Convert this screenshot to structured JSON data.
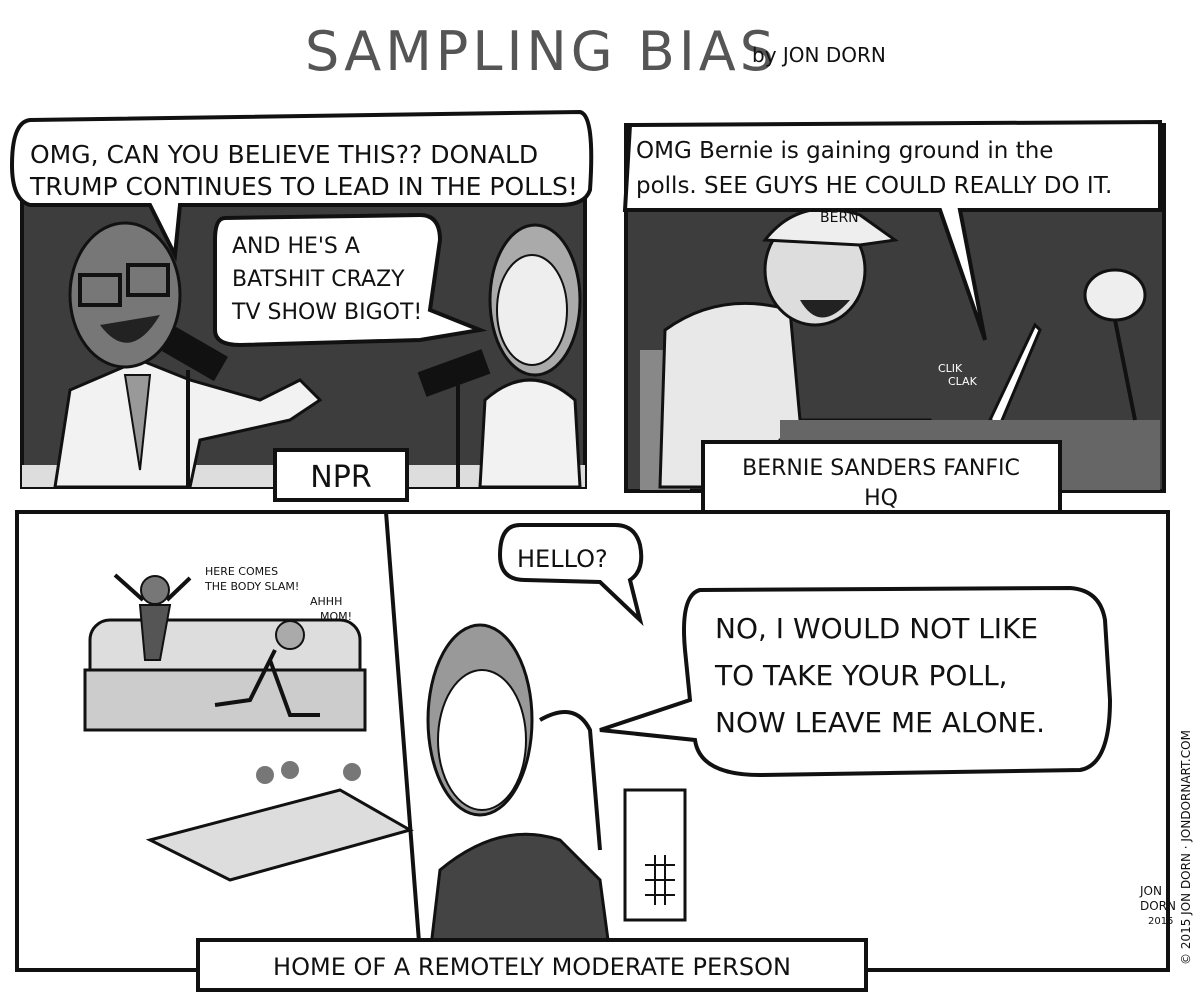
{
  "header": {
    "title": "SAMPLING BIAS",
    "byline": "by JON DORN"
  },
  "panels": [
    {
      "bubbles": [
        {
          "lines": [
            "OMG, CAN YOU BELIEVE THIS?? DONALD",
            "TRUMP CONTINUES TO LEAD IN THE POLLS!"
          ]
        },
        {
          "lines": [
            "AND HE'S A",
            "BATSHIT CRAZY",
            "TV SHOW BIGOT!"
          ]
        }
      ],
      "caption": "NPR"
    },
    {
      "bubbles": [
        {
          "lines": [
            "OMG Bernie is gaining ground in the",
            "polls. SEE GUYS HE COULD REALLY DO IT."
          ]
        }
      ],
      "cap_text": "BERN",
      "sound": [
        "CLIK",
        "CLAK"
      ],
      "caption": [
        "BERNIE SANDERS FANFIC",
        "HQ"
      ]
    },
    {
      "shouts": [
        [
          "HERE COMES",
          "THE BODY SLAM!"
        ],
        [
          "AHHH",
          "MOM!"
        ]
      ],
      "bubbles": [
        {
          "lines": [
            "HELLO?"
          ]
        },
        {
          "lines": [
            "NO, I WOULD NOT LIKE",
            "TO TAKE YOUR POLL,",
            "NOW LEAVE ME ALONE."
          ]
        }
      ],
      "caption": "HOME OF A REMOTELY MODERATE PERSON",
      "signature": [
        "JON",
        "DORN",
        "2015"
      ]
    }
  ],
  "credit": "© 2015 JON DORN · JONDORNART.COM"
}
